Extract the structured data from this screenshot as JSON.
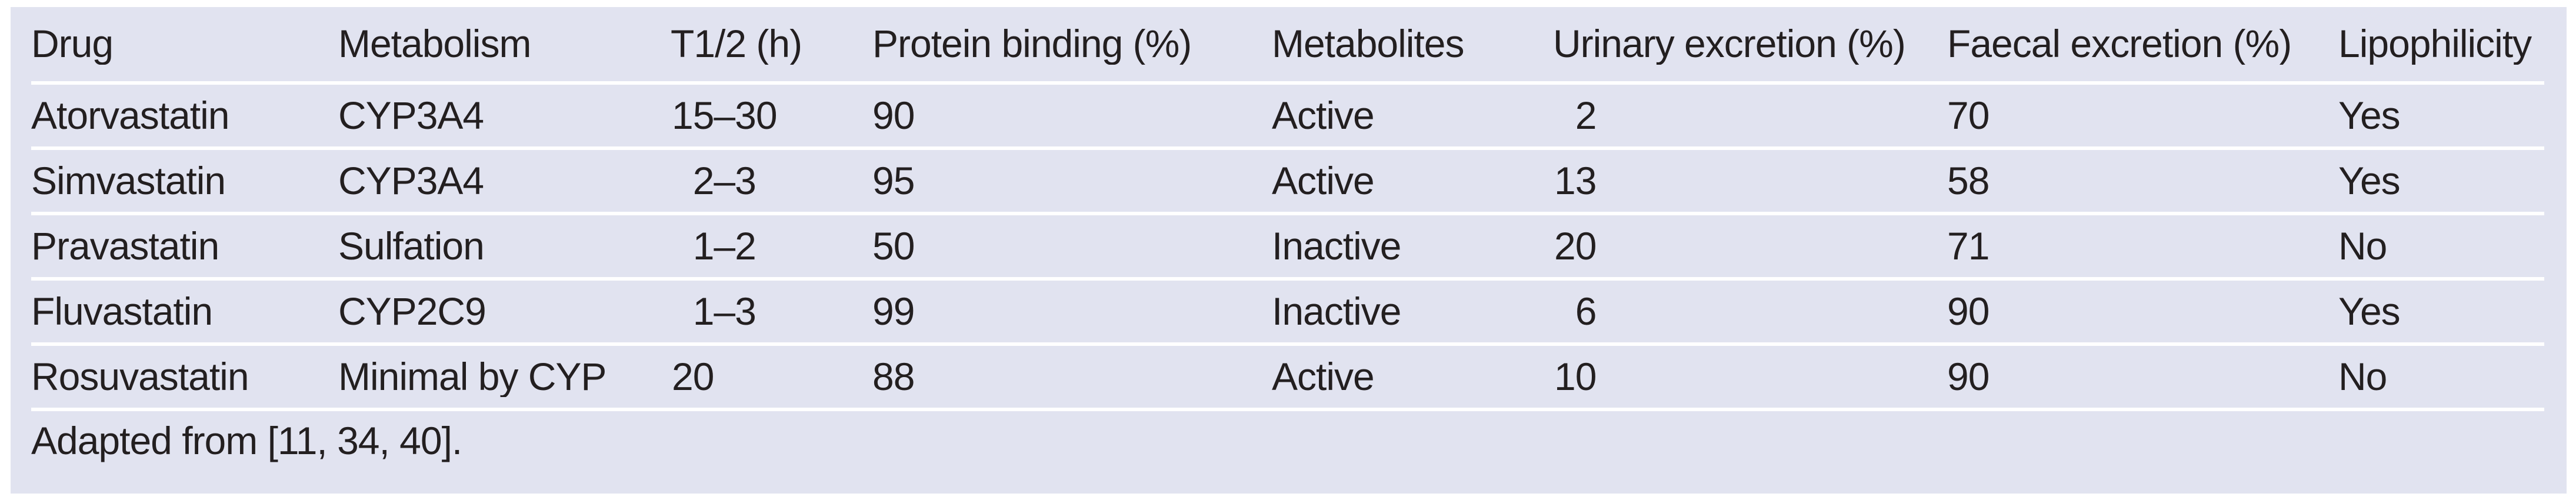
{
  "table": {
    "columns": [
      {
        "label": "Drug"
      },
      {
        "label": "Metabolism"
      },
      {
        "label": "T1/2 (h)"
      },
      {
        "label": "Protein binding (%)"
      },
      {
        "label": "Metabolites"
      },
      {
        "label": "Urinary excretion (%)"
      },
      {
        "label": "Faecal excretion (%)"
      },
      {
        "label": "Lipophilicity"
      }
    ],
    "rows": [
      {
        "drug": "Atorvastatin",
        "metabolism": "CYP3A4",
        "t_half": "15–30",
        "protein_binding": "90",
        "metabolites": "Active",
        "urinary_excretion": "2",
        "faecal_excretion": "70",
        "lipophilicity": "Yes"
      },
      {
        "drug": "Simvastatin",
        "metabolism": "CYP3A4",
        "t_half": "2–3",
        "protein_binding": "95",
        "metabolites": "Active",
        "urinary_excretion": "13",
        "faecal_excretion": "58",
        "lipophilicity": "Yes"
      },
      {
        "drug": "Pravastatin",
        "metabolism": "Sulfation",
        "t_half": "1–2",
        "protein_binding": "50",
        "metabolites": "Inactive",
        "urinary_excretion": "20",
        "faecal_excretion": "71",
        "lipophilicity": "No"
      },
      {
        "drug": "Fluvastatin",
        "metabolism": "CYP2C9",
        "t_half": "1–3",
        "protein_binding": "99",
        "metabolites": "Inactive",
        "urinary_excretion": "6",
        "faecal_excretion": "90",
        "lipophilicity": "Yes"
      },
      {
        "drug": "Rosuvastatin",
        "metabolism": "Minimal by CYP",
        "t_half": "20",
        "protein_binding": "88",
        "metabolites": "Active",
        "urinary_excretion": "10",
        "faecal_excretion": "90",
        "lipophilicity": "No"
      }
    ],
    "footnote": "Adapted from [11, 34, 40]."
  },
  "colors": {
    "panel_background": "#e1e3f0",
    "separator": "#ffffff",
    "text": "#231f20"
  }
}
